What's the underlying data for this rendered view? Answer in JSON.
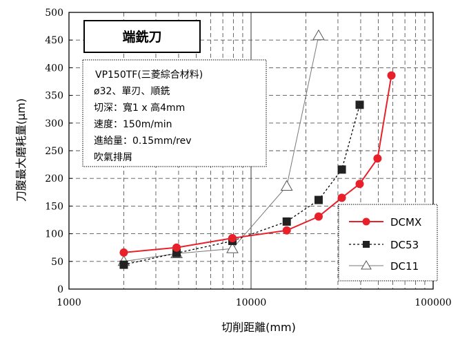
{
  "chart_data": {
    "type": "line",
    "x_scale": "log",
    "xlim": [
      1000,
      100000
    ],
    "ylim": [
      0,
      500
    ],
    "x_ticks": [
      1000,
      10000,
      100000
    ],
    "x_tick_labels": [
      "1000",
      "10000",
      "100000"
    ],
    "y_ticks": [
      0,
      50,
      100,
      150,
      200,
      250,
      300,
      350,
      400,
      450,
      500
    ],
    "y_tick_labels": [
      "0",
      "50",
      "100",
      "150",
      "200",
      "250",
      "300",
      "350",
      "400",
      "450",
      "500"
    ],
    "xlabel": "切削距離(mm)",
    "ylabel": "刀腹最大磨耗量(μm)",
    "grid": true,
    "legend_position": "bottom-right",
    "title_box": "端銑刀",
    "info_lines": [
      "VP150TF(三菱綜合材料)",
      "ø32、單刃、順銑",
      "切深：寬1 x 高4mm",
      "速度：150m/min",
      "進給量：0.15mm/rev",
      "吹氣排屑"
    ],
    "series": [
      {
        "name": "DCMX",
        "color": "#e8202a",
        "marker": "circle",
        "dash": "solid",
        "points": [
          [
            2000,
            66
          ],
          [
            3900,
            75
          ],
          [
            7900,
            92
          ],
          [
            15700,
            106
          ],
          [
            23500,
            131
          ],
          [
            31500,
            165
          ],
          [
            39500,
            190
          ],
          [
            49500,
            236
          ],
          [
            59000,
            386
          ]
        ]
      },
      {
        "name": "DC53",
        "color": "#000000",
        "marker": "square",
        "dash": "dashed",
        "points": [
          [
            2000,
            44
          ],
          [
            3900,
            65
          ],
          [
            7900,
            87
          ],
          [
            15700,
            122
          ],
          [
            23500,
            161
          ],
          [
            31500,
            216
          ],
          [
            39500,
            333
          ]
        ]
      },
      {
        "name": "DC11",
        "color": "#666666",
        "marker": "triangle",
        "dash": "solid",
        "points": [
          [
            2000,
            50
          ],
          [
            3900,
            64
          ],
          [
            7900,
            73
          ],
          [
            15700,
            186
          ],
          [
            23500,
            458
          ]
        ]
      }
    ]
  }
}
